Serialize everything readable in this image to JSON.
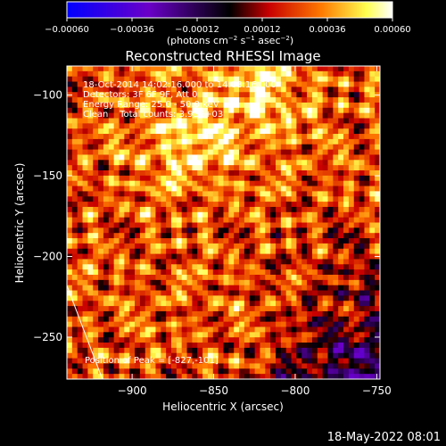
{
  "chart_data": {
    "type": "heatmap",
    "title": "Reconstructed RHESSI Image",
    "xlabel": "Heliocentric X (arcsec)",
    "ylabel": "Heliocentric Y (arcsec)",
    "xlim": [
      -940,
      -748
    ],
    "ylim": [
      -276,
      -82
    ],
    "x_ticks": [
      -900,
      -850,
      -800,
      -750
    ],
    "y_ticks": [
      -100,
      -150,
      -200,
      -250
    ],
    "x_tick_labels": [
      "−900",
      "−850",
      "−800",
      "−750"
    ],
    "y_tick_labels": [
      "−100",
      "−150",
      "−200",
      "−250"
    ],
    "colorbar": {
      "ticks": [
        -0.0006,
        -0.00036,
        -0.00012,
        0.00012,
        0.00036,
        0.0006
      ],
      "tick_labels": [
        "−0.00060",
        "−0.00036",
        "−0.00012",
        "0.00012",
        "0.00036",
        "0.00060"
      ],
      "range": [
        -0.0006,
        0.0006
      ],
      "units_label": "(photons cm",
      "units_exp1": "−2",
      "units_mid": " s",
      "units_exp2": "−1",
      "units_mid2": " asec",
      "units_exp3": "−2",
      "units_end": ")"
    },
    "annotations": [
      "18-Oct-2014 14:02:16.000 to 14:08:16.000",
      "Detectors: 3F 6F 9F, Att 0",
      "Energy Range: 25.0 - 50.0 keV",
      "Clean    Total counts: 3.93E+03"
    ],
    "peak_label": "Position of Peak = [-827,-101]",
    "peak_position": [
      -827,
      -101
    ],
    "limb_line": [
      [
        -940,
        -218
      ],
      [
        -916,
        -282
      ]
    ],
    "grid": false
  },
  "footer_timestamp": "18-May-2022 08:01",
  "colors": {
    "background": "#000000",
    "text": "#ffffff",
    "colormap": [
      "#0000ff",
      "#6a00c8",
      "#000000",
      "#c80000",
      "#ff7800",
      "#ffff50",
      "#ffffff"
    ]
  }
}
